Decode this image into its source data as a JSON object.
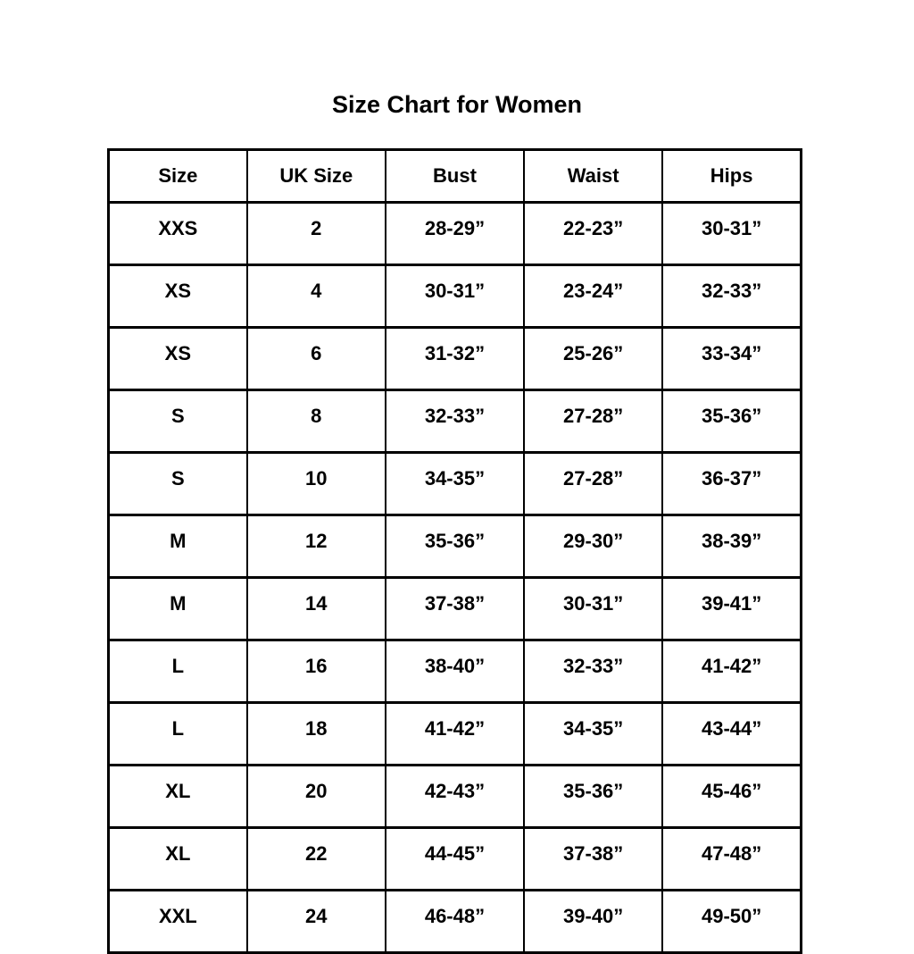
{
  "page": {
    "background_color": "#ffffff",
    "text_color": "#000000",
    "border_color": "#000000"
  },
  "chart_data": {
    "type": "table",
    "title": "Size Chart for Women",
    "columns": [
      "Size",
      "UK Size",
      "Bust",
      "Waist",
      "Hips"
    ],
    "rows": [
      [
        "XXS",
        "2",
        "28-29”",
        "22-23”",
        "30-31”"
      ],
      [
        "XS",
        "4",
        "30-31”",
        "23-24”",
        "32-33”"
      ],
      [
        "XS",
        "6",
        "31-32”",
        "25-26”",
        "33-34”"
      ],
      [
        "S",
        "8",
        "32-33”",
        "27-28”",
        "35-36”"
      ],
      [
        "S",
        "10",
        "34-35”",
        "27-28”",
        "36-37”"
      ],
      [
        "M",
        "12",
        "35-36”",
        "29-30”",
        "38-39”"
      ],
      [
        "M",
        "14",
        "37-38”",
        "30-31”",
        "39-41”"
      ],
      [
        "L",
        "16",
        "38-40”",
        "32-33”",
        "41-42”"
      ],
      [
        "L",
        "18",
        "41-42”",
        "34-35”",
        "43-44”"
      ],
      [
        "XL",
        "20",
        "42-43”",
        "35-36”",
        "45-46”"
      ],
      [
        "XL",
        "22",
        "44-45”",
        "37-38”",
        "47-48”"
      ],
      [
        "XXL",
        "24",
        "46-48”",
        "39-40”",
        "49-50”"
      ]
    ],
    "layout": {
      "grid": true,
      "header_row": true,
      "column_count": 5,
      "row_count": 12
    }
  }
}
